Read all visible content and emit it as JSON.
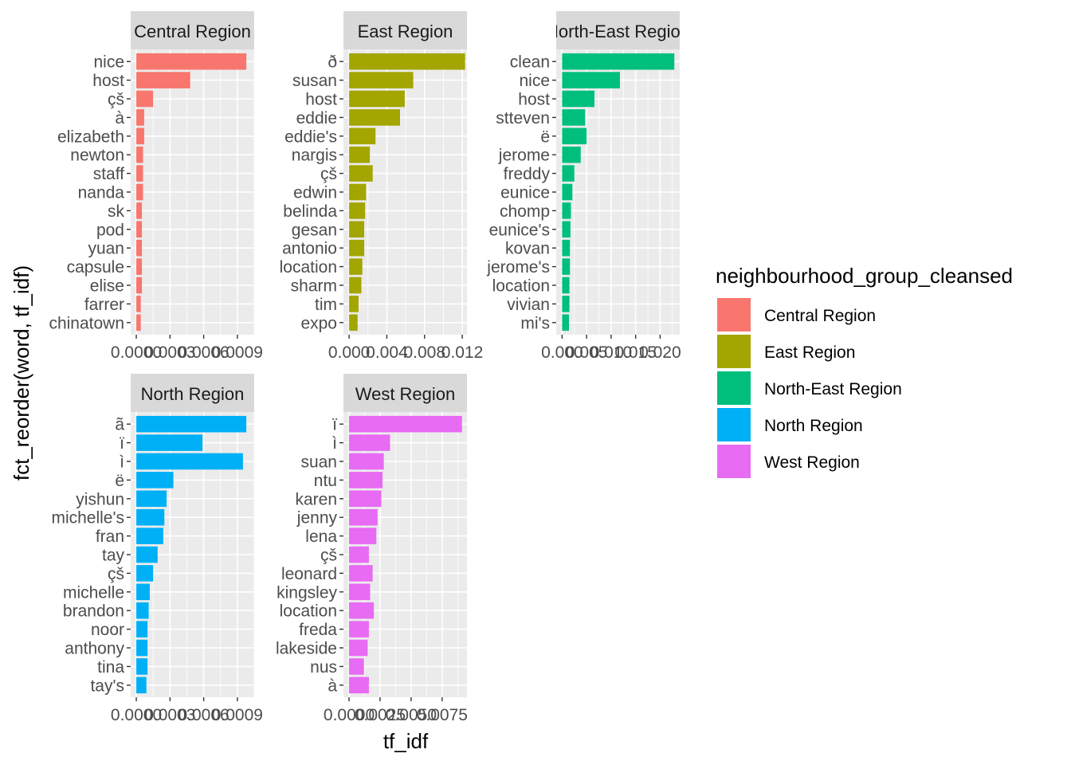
{
  "chart_data": {
    "type": "bar",
    "orientation": "horizontal",
    "faceted": true,
    "xlabel": "tf_idf",
    "ylabel": "fct_reorder(word, tf_idf)",
    "grid": true,
    "legend": {
      "title": "neighbourhood_group_cleansed",
      "position": "right",
      "entries": [
        {
          "name": "Central Region",
          "color": "#F8766D"
        },
        {
          "name": "East Region",
          "color": "#A3A500"
        },
        {
          "name": "North-East Region",
          "color": "#00BF7D"
        },
        {
          "name": "North Region",
          "color": "#00B0F6"
        },
        {
          "name": "West Region",
          "color": "#E76BF3"
        }
      ]
    },
    "panels": [
      {
        "title": "Central Region",
        "color": "#F8766D",
        "xlim": [
          -5e-05,
          0.00105
        ],
        "xticks": [
          0.0,
          0.0003,
          0.0006,
          0.0009
        ],
        "xtick_labels": [
          "0.0000",
          "0.0003",
          "0.0006",
          "0.0009"
        ],
        "categories": [
          "nice",
          "host",
          "çš",
          "à",
          "elizabeth",
          "newton",
          "staff",
          "nanda",
          "sk",
          "pod",
          "yuan",
          "capsule",
          "elise",
          "farrer",
          "chinatown"
        ],
        "values": [
          0.00098,
          0.00048,
          0.00015,
          7e-05,
          7e-05,
          6e-05,
          6e-05,
          6e-05,
          5e-05,
          5e-05,
          5e-05,
          5e-05,
          5e-05,
          4e-05,
          4e-05
        ]
      },
      {
        "title": "East Region",
        "color": "#A3A500",
        "xlim": [
          -0.0006,
          0.0125
        ],
        "xticks": [
          0.0,
          0.004,
          0.008,
          0.012
        ],
        "xtick_labels": [
          "0.000",
          "0.004",
          "0.008",
          "0.012"
        ],
        "categories": [
          "ð",
          "susan",
          "host",
          "eddie",
          "eddie's",
          "nargis",
          "çš",
          "edwin",
          "belinda",
          "gesan",
          "antonio",
          "location",
          "sharm",
          "tim",
          "expo"
        ],
        "values": [
          0.0123,
          0.0068,
          0.0059,
          0.0054,
          0.0028,
          0.0022,
          0.0025,
          0.0018,
          0.0017,
          0.0016,
          0.0016,
          0.0014,
          0.0013,
          0.001,
          0.0009
        ]
      },
      {
        "title": "North-East Region",
        "color": "#00BF7D",
        "xlim": [
          -0.0012,
          0.024
        ],
        "xticks": [
          0.0,
          0.005,
          0.01,
          0.015,
          0.02
        ],
        "xtick_labels": [
          "0.000",
          "0.005",
          "0.010",
          "0.015",
          "0.020"
        ],
        "categories": [
          "clean",
          "nice",
          "host",
          "stteven",
          "ë",
          "jerome",
          "freddy",
          "eunice",
          "chomp",
          "eunice's",
          "kovan",
          "jerome's",
          "location",
          "vivian",
          "mi's"
        ],
        "values": [
          0.0229,
          0.0118,
          0.0066,
          0.0047,
          0.005,
          0.0038,
          0.0025,
          0.0021,
          0.0018,
          0.0017,
          0.0016,
          0.0016,
          0.0015,
          0.0015,
          0.0014
        ]
      },
      {
        "title": "North Region",
        "color": "#00B0F6",
        "xlim": [
          -5e-05,
          0.00105
        ],
        "xticks": [
          0.0,
          0.0003,
          0.0006,
          0.0009
        ],
        "xtick_labels": [
          "0.0000",
          "0.0003",
          "0.0006",
          "0.0009"
        ],
        "categories": [
          "ã",
          "ï",
          "ì",
          "ë",
          "yishun",
          "michelle's",
          "fran",
          "tay",
          "çš",
          "michelle",
          "brandon",
          "noor",
          "anthony",
          "tina",
          "tay's"
        ],
        "values": [
          0.00098,
          0.00059,
          0.00095,
          0.00033,
          0.00027,
          0.00025,
          0.00024,
          0.00019,
          0.00015,
          0.00012,
          0.00011,
          0.0001,
          0.0001,
          0.0001,
          9e-05
        ]
      },
      {
        "title": "West Region",
        "color": "#E76BF3",
        "xlim": [
          -0.00045,
          0.0095
        ],
        "xticks": [
          0.0,
          0.0025,
          0.005,
          0.0075
        ],
        "xtick_labels": [
          "0.0000",
          "0.0025",
          "0.0050",
          "0.0075"
        ],
        "categories": [
          "ï",
          "ì",
          "suan",
          "ntu",
          "karen",
          "jenny",
          "lena",
          "çš",
          "leonard",
          "kingsley",
          "location",
          "freda",
          "lakeside",
          "nus",
          "à"
        ],
        "values": [
          0.0091,
          0.0033,
          0.0028,
          0.0027,
          0.0026,
          0.0023,
          0.0022,
          0.0016,
          0.0019,
          0.0017,
          0.002,
          0.0016,
          0.0015,
          0.0012,
          0.0016
        ]
      }
    ]
  }
}
